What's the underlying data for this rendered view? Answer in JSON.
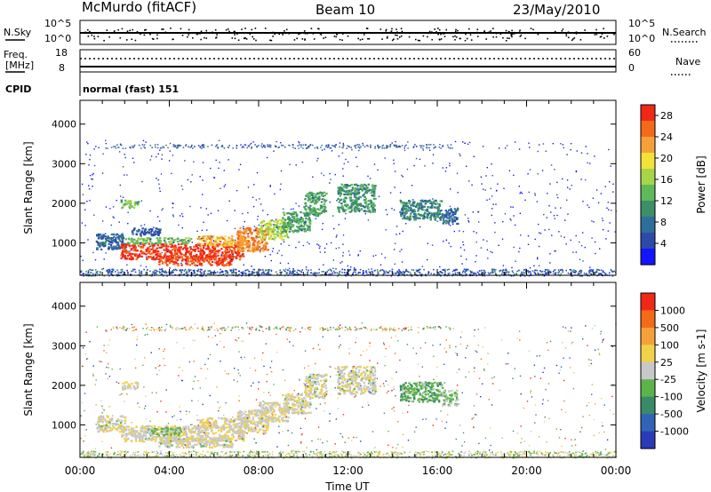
{
  "header": {
    "station": "McMurdo (fitACF)",
    "beam": "Beam 10",
    "date": "23/May/2010"
  },
  "top_strip": {
    "nsky_label": "N.Sky",
    "nsky_ticks": [
      "10^5",
      "10^0"
    ],
    "nsearch_label": "N.Search",
    "nsearch_ticks": [
      "10^5",
      "10^0"
    ],
    "freq_label_1": "Freq.",
    "freq_label_2": "[MHz]",
    "freq_ticks": [
      "18",
      "8"
    ],
    "nave_label": "Nave",
    "nave_ticks": [
      "60",
      "0"
    ],
    "cpid_label": "CPID",
    "cpid_text": "normal (fast) 151"
  },
  "chart_data": [
    {
      "type": "heatmap",
      "title": "",
      "xlabel": "",
      "ylabel": "Slant Range [km]",
      "ylim": [
        180,
        4600
      ],
      "yticks": [
        "1000",
        "2000",
        "3000",
        "4000"
      ],
      "colorbar": {
        "label": "Power [dB]",
        "range": [
          0,
          30
        ],
        "ticks": [
          "4",
          "8",
          "12",
          "16",
          "20",
          "24",
          "28"
        ],
        "colors": [
          "#1414ff",
          "#2d4aa8",
          "#2f6e9a",
          "#3d8f6a",
          "#5fb85a",
          "#a7d44a",
          "#f2e23a",
          "#f5a13a",
          "#f26a1a",
          "#f02818"
        ]
      },
      "regions": [
        {
          "t0": 0.7,
          "t1": 2.0,
          "r0": 850,
          "r1": 1250,
          "v": 7
        },
        {
          "t0": 1.8,
          "t1": 7.3,
          "r0": 600,
          "r1": 1000,
          "v": 28
        },
        {
          "t0": 3.5,
          "t1": 6.8,
          "r0": 450,
          "r1": 700,
          "v": 27
        },
        {
          "t0": 2.0,
          "t1": 5.0,
          "r0": 1000,
          "r1": 1150,
          "v": 14
        },
        {
          "t0": 5.2,
          "t1": 7.5,
          "r0": 950,
          "r1": 1200,
          "v": 22
        },
        {
          "t0": 7.0,
          "t1": 8.4,
          "r0": 800,
          "r1": 1400,
          "v": 24
        },
        {
          "t0": 8.0,
          "t1": 9.3,
          "r0": 1100,
          "r1": 1600,
          "v": 17
        },
        {
          "t0": 9.0,
          "t1": 10.3,
          "r0": 1300,
          "r1": 1800,
          "v": 12
        },
        {
          "t0": 10.0,
          "t1": 11.0,
          "r0": 1700,
          "r1": 2300,
          "v": 12
        },
        {
          "t0": 11.5,
          "t1": 13.2,
          "r0": 1800,
          "r1": 2500,
          "v": 11
        },
        {
          "t0": 14.3,
          "t1": 16.2,
          "r0": 1600,
          "r1": 2100,
          "v": 10
        },
        {
          "t0": 16.2,
          "t1": 16.9,
          "r0": 1500,
          "r1": 1900,
          "v": 7
        },
        {
          "t0": 1.8,
          "t1": 2.6,
          "r0": 1900,
          "r1": 2100,
          "v": 14
        },
        {
          "t0": 2.3,
          "t1": 3.6,
          "r0": 1200,
          "r1": 1400,
          "v": 6
        }
      ],
      "background_echo_range": [
        180,
        350
      ],
      "band_echo_range": [
        3400,
        3500
      ]
    },
    {
      "type": "heatmap",
      "title": "",
      "xlabel": "Time UT",
      "ylabel": "Slant Range [km]",
      "ylim": [
        180,
        4600
      ],
      "xlim": [
        "00:00",
        "24:00"
      ],
      "xticks": [
        "00:00",
        "04:00",
        "08:00",
        "12:00",
        "16:00",
        "20:00",
        "00:00"
      ],
      "yticks": [
        "1000",
        "2000",
        "3000",
        "4000"
      ],
      "colorbar": {
        "label": "Velocity [m s-1]",
        "range": [
          -1200,
          1200
        ],
        "ticks": [
          "1000",
          "500",
          "100",
          "25",
          "-25",
          "-100",
          "-500",
          "-1000"
        ],
        "colors": [
          "#2b3ab8",
          "#3264b4",
          "#3a8a6a",
          "#5cb34a",
          "#c8c8c8",
          "#f0d24a",
          "#f5a13a",
          "#f26a1a",
          "#f02818"
        ]
      },
      "regions": [
        {
          "t0": 0.7,
          "t1": 2.0,
          "r0": 850,
          "r1": 1250,
          "v": 50
        },
        {
          "t0": 1.8,
          "t1": 7.3,
          "r0": 600,
          "r1": 1000,
          "v": 80
        },
        {
          "t0": 3.5,
          "t1": 6.8,
          "r0": 450,
          "r1": 700,
          "v": 60
        },
        {
          "t0": 3.0,
          "t1": 4.5,
          "r0": 750,
          "r1": 950,
          "v": -150
        },
        {
          "t0": 5.2,
          "t1": 7.5,
          "r0": 950,
          "r1": 1200,
          "v": 90
        },
        {
          "t0": 7.0,
          "t1": 8.4,
          "r0": 800,
          "r1": 1400,
          "v": 80
        },
        {
          "t0": 8.0,
          "t1": 9.3,
          "r0": 1100,
          "r1": 1600,
          "v": 70
        },
        {
          "t0": 9.0,
          "t1": 10.3,
          "r0": 1300,
          "r1": 1800,
          "v": 60
        },
        {
          "t0": 10.0,
          "t1": 11.0,
          "r0": 1700,
          "r1": 2300,
          "v": 50
        },
        {
          "t0": 11.5,
          "t1": 13.2,
          "r0": 1800,
          "r1": 2500,
          "v": 40
        },
        {
          "t0": 14.3,
          "t1": 16.2,
          "r0": 1600,
          "r1": 2100,
          "v": -300
        },
        {
          "t0": 16.2,
          "t1": 16.9,
          "r0": 1500,
          "r1": 1900,
          "v": -150
        },
        {
          "t0": 1.8,
          "t1": 2.6,
          "r0": 1900,
          "r1": 2100,
          "v": 80
        }
      ],
      "background_echo_range": [
        180,
        350
      ],
      "band_echo_range": [
        3400,
        3500
      ]
    }
  ]
}
